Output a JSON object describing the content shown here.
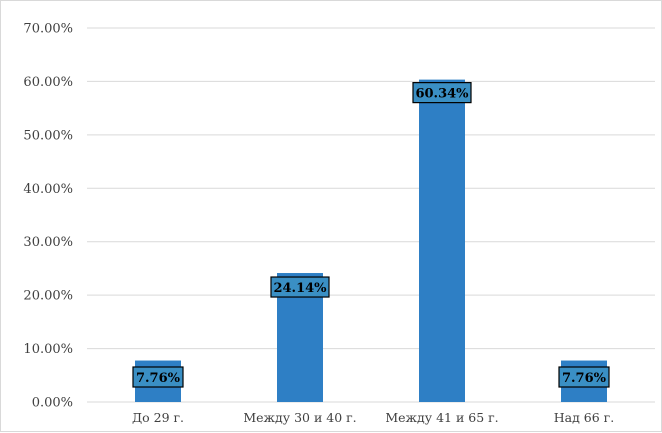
{
  "chart_data": {
    "type": "bar",
    "categories": [
      "До 29 г.",
      "Между 30 и 40 г.",
      "Между 41 и 65 г.",
      "Над 66 г."
    ],
    "values": [
      7.76,
      24.14,
      60.34,
      7.76
    ],
    "data_labels": [
      "7.76%",
      "24.14%",
      "60.34%",
      "7.76%"
    ],
    "y_ticks": [
      "0.00%",
      "10.00%",
      "20.00%",
      "30.00%",
      "40.00%",
      "50.00%",
      "60.00%",
      "70.00%"
    ],
    "ylim": [
      0,
      70
    ],
    "grid": true,
    "legend": "none",
    "colors": {
      "bar": "#2e7fc5",
      "label_box": "#3a8fc4",
      "grid": "#d9d9d9"
    }
  }
}
